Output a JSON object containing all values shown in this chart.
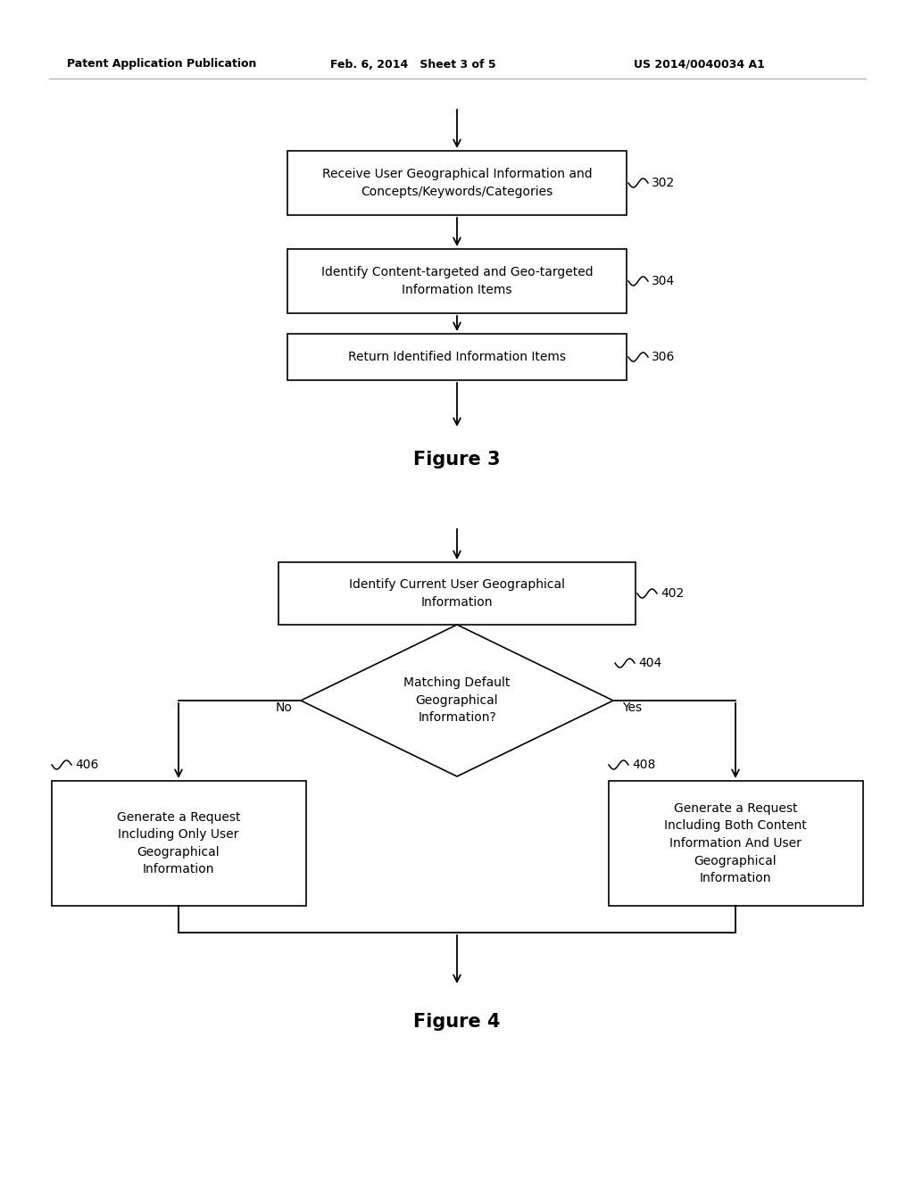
{
  "bg_color": "#ffffff",
  "header_left": "Patent Application Publication",
  "header_mid": "Feb. 6, 2014   Sheet 3 of 5",
  "header_right": "US 2014/0040034 A1",
  "fig3_title": "Figure 3",
  "fig4_title": "Figure 4",
  "text_color": "#000000",
  "box_edge_color": "#000000",
  "box_fill_color": "#ffffff",
  "line_color": "#000000",
  "header_line_color": "#aaaaaa",
  "fig3": {
    "box302": {
      "label": "Receive User Geographical Information and\nConcepts/Keywords/Categories",
      "ref": "302"
    },
    "box304": {
      "label": "Identify Content-targeted and Geo-targeted\nInformation Items",
      "ref": "304"
    },
    "box306": {
      "label": "Return Identified Information Items",
      "ref": "306"
    }
  },
  "fig4": {
    "box402": {
      "label": "Identify Current User Geographical\nInformation",
      "ref": "402"
    },
    "diamond404": {
      "label": "Matching Default\nGeographical\nInformation?",
      "ref": "404"
    },
    "box406": {
      "label": "Generate a Request\nIncluding Only User\nGeographical\nInformation",
      "ref": "406"
    },
    "box408": {
      "label": "Generate a Request\nIncluding Both Content\nInformation And User\nGeographical\nInformation",
      "ref": "408"
    },
    "label_no": "No",
    "label_yes": "Yes"
  }
}
